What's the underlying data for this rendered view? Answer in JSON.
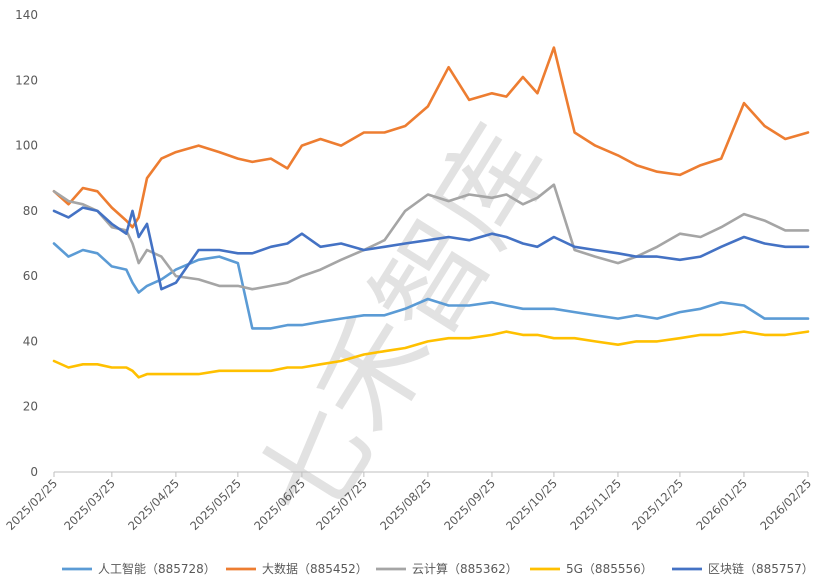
{
  "chart_data": {
    "type": "line",
    "title": "",
    "xlabel": "",
    "ylabel": "",
    "ylim": [
      0,
      140
    ],
    "yticks": [
      0,
      20,
      40,
      60,
      80,
      100,
      120,
      140
    ],
    "xticks": [
      "2025/02/25",
      "2025/03/25",
      "2025/04/25",
      "2025/05/25",
      "2025/06/25",
      "2025/07/25",
      "2025/08/25",
      "2025/09/25",
      "2025/10/25",
      "2025/11/25",
      "2025/12/25",
      "2026/01/25",
      "2026/02/25"
    ],
    "grid": false,
    "legend": "bottom",
    "x": [
      "2025/02/25",
      "2025/03/04",
      "2025/03/11",
      "2025/03/18",
      "2025/03/25",
      "2025/04/01",
      "2025/04/04",
      "2025/04/07",
      "2025/04/11",
      "2025/04/18",
      "2025/04/25",
      "2025/05/06",
      "2025/05/16",
      "2025/05/25",
      "2025/06/01",
      "2025/06/10",
      "2025/06/18",
      "2025/06/25",
      "2025/07/04",
      "2025/07/14",
      "2025/07/25",
      "2025/08/04",
      "2025/08/14",
      "2025/08/25",
      "2025/09/04",
      "2025/09/14",
      "2025/09/25",
      "2025/10/02",
      "2025/10/10",
      "2025/10/17",
      "2025/10/25",
      "2025/11/04",
      "2025/11/14",
      "2025/11/25",
      "2025/12/04",
      "2025/12/14",
      "2025/12/25",
      "2026/01/04",
      "2026/01/14",
      "2026/01/25",
      "2026/02/04",
      "2026/02/14",
      "2026/02/25"
    ],
    "series": [
      {
        "name": "人工智能（885728）",
        "color": "#5b9bd5",
        "values": [
          70,
          66,
          68,
          67,
          63,
          62,
          58,
          55,
          57,
          59,
          62,
          65,
          66,
          64,
          44,
          44,
          45,
          45,
          46,
          47,
          48,
          48,
          50,
          53,
          51,
          51,
          52,
          51,
          50,
          50,
          50,
          49,
          48,
          47,
          48,
          47,
          49,
          50,
          52,
          51,
          47,
          47,
          47
        ]
      },
      {
        "name": "大数据（885452）",
        "color": "#ed7d31",
        "values": [
          86,
          82,
          87,
          86,
          81,
          77,
          75,
          78,
          90,
          96,
          98,
          100,
          98,
          96,
          95,
          96,
          93,
          100,
          102,
          100,
          104,
          104,
          106,
          112,
          124,
          114,
          116,
          115,
          121,
          116,
          130,
          104,
          100,
          97,
          94,
          92,
          91,
          94,
          96,
          113,
          106,
          102,
          104
        ]
      },
      {
        "name": "云计算（885362）",
        "color": "#a5a5a5",
        "values": [
          86,
          83,
          82,
          80,
          75,
          74,
          70,
          64,
          68,
          66,
          60,
          59,
          57,
          57,
          56,
          57,
          58,
          60,
          62,
          65,
          68,
          71,
          80,
          85,
          83,
          85,
          84,
          85,
          82,
          84,
          88,
          68,
          66,
          64,
          66,
          69,
          73,
          72,
          75,
          79,
          77,
          74,
          74
        ]
      },
      {
        "name": "5G（885556）",
        "color": "#ffc000",
        "values": [
          34,
          32,
          33,
          33,
          32,
          32,
          31,
          29,
          30,
          30,
          30,
          30,
          31,
          31,
          31,
          31,
          32,
          32,
          33,
          34,
          36,
          37,
          38,
          40,
          41,
          41,
          42,
          43,
          42,
          42,
          41,
          41,
          40,
          39,
          40,
          40,
          41,
          42,
          42,
          43,
          42,
          42,
          43
        ]
      },
      {
        "name": "区块链（885757）",
        "color": "#4472c4",
        "values": [
          80,
          78,
          81,
          80,
          76,
          73,
          80,
          72,
          76,
          56,
          58,
          68,
          68,
          67,
          67,
          69,
          70,
          73,
          69,
          70,
          68,
          69,
          70,
          71,
          72,
          71,
          73,
          72,
          70,
          69,
          72,
          69,
          68,
          67,
          66,
          66,
          65,
          66,
          69,
          72,
          70,
          69,
          69
        ]
      }
    ]
  },
  "watermark": "七禾智库"
}
